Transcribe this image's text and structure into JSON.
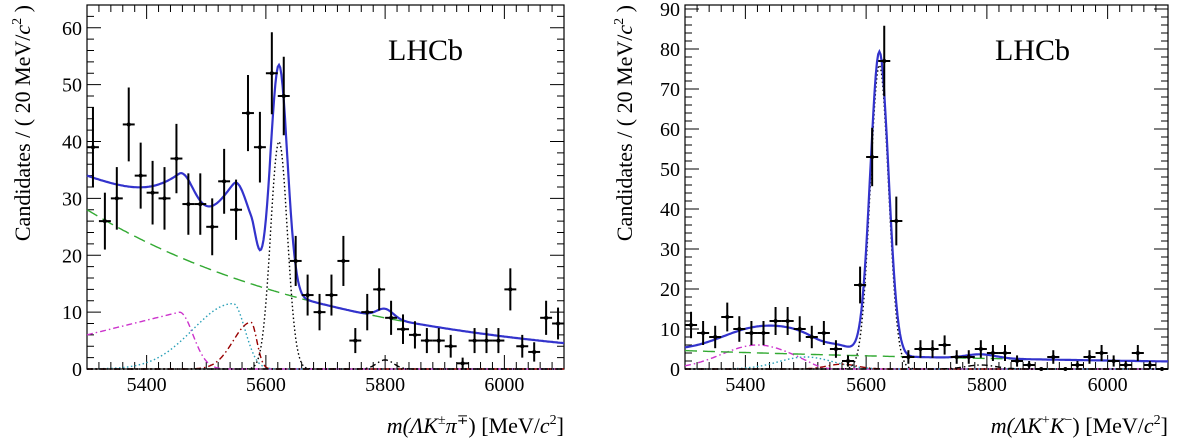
{
  "chart_data": [
    {
      "type": "scatter",
      "brand_label": "LHCb",
      "xlabel": "m(ΛK±π∓) [MeV/c2]",
      "xlabel_parts": [
        "m(",
        "Λ",
        "K",
        "±",
        "π",
        "∓",
        ") [MeV/",
        "c",
        "2",
        "]"
      ],
      "ylabel": "Candidates / ( 20 MeV/c2 )",
      "ylabel_parts": [
        "Candidates / ( 20 MeV/",
        "c",
        "2",
        " )"
      ],
      "xlim": [
        5300,
        6100
      ],
      "ylim": [
        0,
        64
      ],
      "x_ticks": [
        5400,
        5600,
        5800,
        6000
      ],
      "y_ticks": [
        0,
        10,
        20,
        30,
        40,
        50,
        60
      ],
      "grid": false,
      "data": {
        "x": [
          5310,
          5330,
          5350,
          5370,
          5390,
          5410,
          5430,
          5450,
          5470,
          5490,
          5510,
          5530,
          5550,
          5570,
          5590,
          5610,
          5630,
          5650,
          5670,
          5690,
          5710,
          5730,
          5750,
          5770,
          5790,
          5810,
          5830,
          5850,
          5870,
          5890,
          5910,
          5930,
          5950,
          5970,
          5990,
          6010,
          6030,
          6050,
          6070,
          6090
        ],
        "y": [
          39,
          26,
          30,
          43,
          34,
          31,
          30,
          37,
          29,
          29,
          25,
          33,
          28,
          45,
          39,
          52,
          48,
          19,
          13,
          10,
          13,
          19,
          5,
          10,
          14,
          9,
          7,
          6,
          5,
          5,
          4,
          1,
          5,
          5,
          5,
          14,
          4,
          3,
          9,
          8
        ],
        "yerr": [
          7,
          5,
          5.5,
          6.5,
          5.8,
          5.6,
          5.5,
          6.1,
          5.4,
          5.4,
          5,
          5.7,
          5.3,
          6.7,
          6.2,
          7.2,
          6.9,
          4.4,
          3.6,
          3.2,
          3.6,
          4.4,
          2.2,
          3.2,
          3.7,
          3,
          2.6,
          2.4,
          2.2,
          2.2,
          2,
          1,
          2.2,
          2.2,
          2.2,
          3.7,
          2,
          1.7,
          3,
          2.8
        ]
      },
      "curves": {
        "total_fit": {
          "color": "#3333cc",
          "style": "solid"
        },
        "signal": {
          "color": "#000000",
          "style": "dotted"
        },
        "combinatorial": {
          "color": "#33aa33",
          "style": "dashed"
        },
        "bkg_magenta": {
          "color": "#cc33cc",
          "style": "dash-dot"
        },
        "bkg_cyan": {
          "color": "#2aa0b8",
          "style": "dotted"
        },
        "bkg_darkred": {
          "color": "#990000",
          "style": "dash-dot"
        },
        "bkg_black": {
          "color": "#000000",
          "style": "dash-dot"
        }
      }
    },
    {
      "type": "scatter",
      "brand_label": "LHCb",
      "xlabel": "m(ΛK+K−) [MeV/c2]",
      "xlabel_parts": [
        "m(",
        "Λ",
        "K",
        "+",
        "K",
        "−",
        ") [MeV/",
        "c",
        "2",
        "]"
      ],
      "ylabel": "Candidates / ( 20 MeV/c2 )",
      "ylabel_parts": [
        "Candidates / ( 20 MeV/",
        "c",
        "2",
        " )"
      ],
      "xlim": [
        5300,
        6100
      ],
      "ylim": [
        0,
        91
      ],
      "x_ticks": [
        5400,
        5600,
        5800,
        6000
      ],
      "y_ticks": [
        0,
        10,
        20,
        30,
        40,
        50,
        60,
        70,
        80,
        90
      ],
      "grid": false,
      "data": {
        "x": [
          5310,
          5330,
          5350,
          5370,
          5390,
          5410,
          5430,
          5450,
          5470,
          5490,
          5510,
          5530,
          5550,
          5570,
          5590,
          5610,
          5630,
          5650,
          5670,
          5690,
          5710,
          5730,
          5750,
          5770,
          5790,
          5810,
          5830,
          5850,
          5870,
          5890,
          5910,
          5930,
          5950,
          5970,
          5990,
          6010,
          6030,
          6050,
          6070,
          6090
        ],
        "y": [
          11,
          9,
          8,
          13,
          10,
          9,
          9,
          12,
          12,
          10,
          8,
          9,
          5,
          2,
          21,
          53,
          77,
          37,
          3,
          5,
          5,
          6,
          3,
          3,
          5,
          4,
          4,
          2,
          1,
          0,
          3,
          0,
          1,
          3,
          4,
          2,
          1,
          4,
          1,
          0
        ],
        "yerr": [
          3.3,
          3,
          2.8,
          3.6,
          3.2,
          3,
          3,
          3.5,
          3.5,
          3.2,
          2.8,
          3,
          2.2,
          1.4,
          4.6,
          7.3,
          8.8,
          6.1,
          1.7,
          2.2,
          2.2,
          2.4,
          1.7,
          1.7,
          2.2,
          2,
          2,
          1.4,
          1,
          0,
          1.7,
          0,
          1,
          1.7,
          2,
          1.4,
          1,
          2,
          1,
          0
        ]
      },
      "curves": {
        "total_fit": {
          "color": "#3333cc",
          "style": "solid"
        },
        "signal": {
          "color": "#000000",
          "style": "dotted"
        },
        "combinatorial": {
          "color": "#33aa33",
          "style": "dashed"
        },
        "bkg_magenta": {
          "color": "#cc33cc",
          "style": "dash-dot"
        },
        "bkg_cyan": {
          "color": "#2aa0b8",
          "style": "dotted"
        },
        "bkg_darkred": {
          "color": "#990000",
          "style": "dash-dot"
        },
        "bkg_black": {
          "color": "#000000",
          "style": "dash-dot"
        }
      }
    }
  ]
}
